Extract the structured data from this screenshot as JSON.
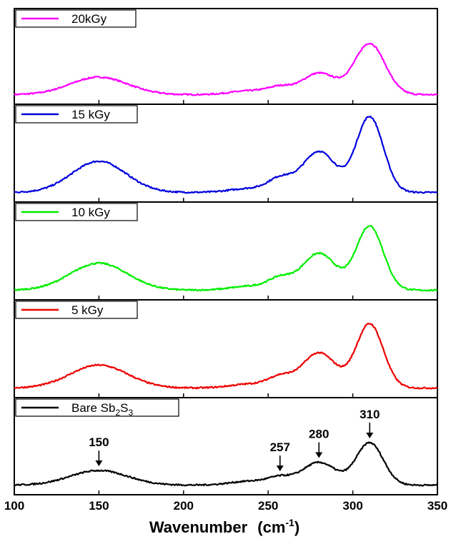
{
  "chart_data": {
    "type": "line",
    "title": "",
    "xlabel": "Wavenumber",
    "xlabel_unit_base": "(cm",
    "xlabel_unit_sup": "-1",
    "xlabel_unit_close": ")",
    "ylabel": "",
    "xlim": [
      100,
      350
    ],
    "x_ticks": [
      "100",
      "150",
      "200",
      "250",
      "300",
      "350"
    ],
    "x_tick_values": [
      100,
      150,
      200,
      250,
      300,
      350
    ],
    "layout": "stacked-panels",
    "legend_placement": "top-left of each panel",
    "panels": [
      {
        "name": "20kGy",
        "color": "#ff00ff",
        "peaks": [
          {
            "x": 150,
            "height": 0.22,
            "width": 17
          },
          {
            "x": 280,
            "height": 0.27,
            "width": 10
          },
          {
            "x": 310,
            "height": 0.64,
            "width": 9
          }
        ],
        "shoulder_255": 0.08
      },
      {
        "name": "15 kGy",
        "color": "#0000dd",
        "peaks": [
          {
            "x": 150,
            "height": 0.38,
            "width": 16
          },
          {
            "x": 280,
            "height": 0.5,
            "width": 10
          },
          {
            "x": 310,
            "height": 0.92,
            "width": 8
          }
        ],
        "shoulder_255": 0.15
      },
      {
        "name": "10 kGy",
        "color": "#00ee00",
        "peaks": [
          {
            "x": 150,
            "height": 0.33,
            "width": 17
          },
          {
            "x": 280,
            "height": 0.45,
            "width": 10
          },
          {
            "x": 310,
            "height": 0.78,
            "width": 8
          }
        ],
        "shoulder_255": 0.13
      },
      {
        "name": "5 kGy",
        "color": "#ee0000",
        "peaks": [
          {
            "x": 150,
            "height": 0.28,
            "width": 17
          },
          {
            "x": 280,
            "height": 0.43,
            "width": 10
          },
          {
            "x": 310,
            "height": 0.78,
            "width": 8
          }
        ],
        "shoulder_255": 0.12
      },
      {
        "name_base": "Bare Sb",
        "name_sub1": "2",
        "name_mid": "S",
        "name_sub2": "3",
        "color": "#000000",
        "peaks": [
          {
            "x": 150,
            "height": 0.18,
            "width": 17
          },
          {
            "x": 280,
            "height": 0.28,
            "width": 10
          },
          {
            "x": 310,
            "height": 0.52,
            "width": 8
          }
        ],
        "shoulder_255": 0.08
      }
    ],
    "annotations": [
      {
        "text": "150",
        "x": 150
      },
      {
        "text": "257",
        "x": 257
      },
      {
        "text": "280",
        "x": 280
      },
      {
        "text": "310",
        "x": 310
      }
    ]
  }
}
